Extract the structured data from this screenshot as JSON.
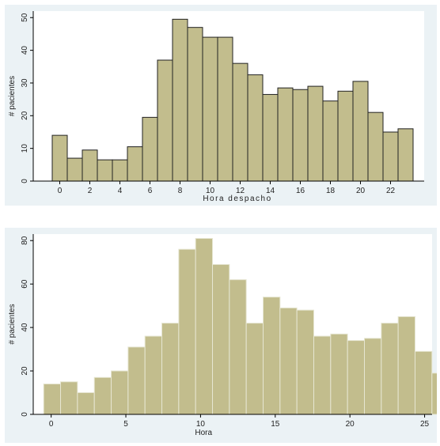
{
  "chart_data": [
    {
      "type": "bar",
      "xlabel": "Hora despacho",
      "ylabel": "# pacientes",
      "xticks": [
        "0",
        "2",
        "4",
        "6",
        "8",
        "10",
        "12",
        "14",
        "16",
        "18",
        "20",
        "22"
      ],
      "yticks": [
        "0",
        "10",
        "20",
        "30",
        "40",
        "50"
      ],
      "ylim": [
        0,
        52
      ],
      "categories": [
        "0",
        "1",
        "2",
        "3",
        "4",
        "5",
        "6",
        "7",
        "8",
        "9",
        "10",
        "11",
        "12",
        "13",
        "14",
        "15",
        "16",
        "17",
        "18",
        "19",
        "20",
        "21",
        "22",
        "23"
      ],
      "values": [
        14,
        7,
        9.5,
        6.5,
        6.5,
        10.5,
        19.5,
        37,
        49.5,
        47,
        44,
        44,
        36,
        32.5,
        26.5,
        28.5,
        28,
        29,
        24.5,
        27.5,
        30.5,
        21,
        15,
        16
      ],
      "bar_color": "#c2bd8d",
      "bar_edge": "#222222",
      "grid": false
    },
    {
      "type": "bar",
      "xlabel": "Hora",
      "ylabel": "# pacientes",
      "xticks": [
        "0",
        "5",
        "10",
        "15",
        "20",
        "25"
      ],
      "yticks": [
        "0",
        "20",
        "40",
        "60",
        "80"
      ],
      "ylim": [
        0,
        83
      ],
      "xlim": [
        -1.2,
        25.5
      ],
      "bin_width": 1.13,
      "bin_start": -0.5,
      "values": [
        14,
        15,
        10,
        17,
        20,
        31,
        36,
        42,
        76,
        81,
        69,
        62,
        42,
        54,
        49,
        48,
        36,
        37,
        34,
        35,
        42,
        45,
        29,
        19
      ],
      "bar_color": "#c2bd8d",
      "bar_edge": "#e6e6d2",
      "grid": false
    }
  ]
}
